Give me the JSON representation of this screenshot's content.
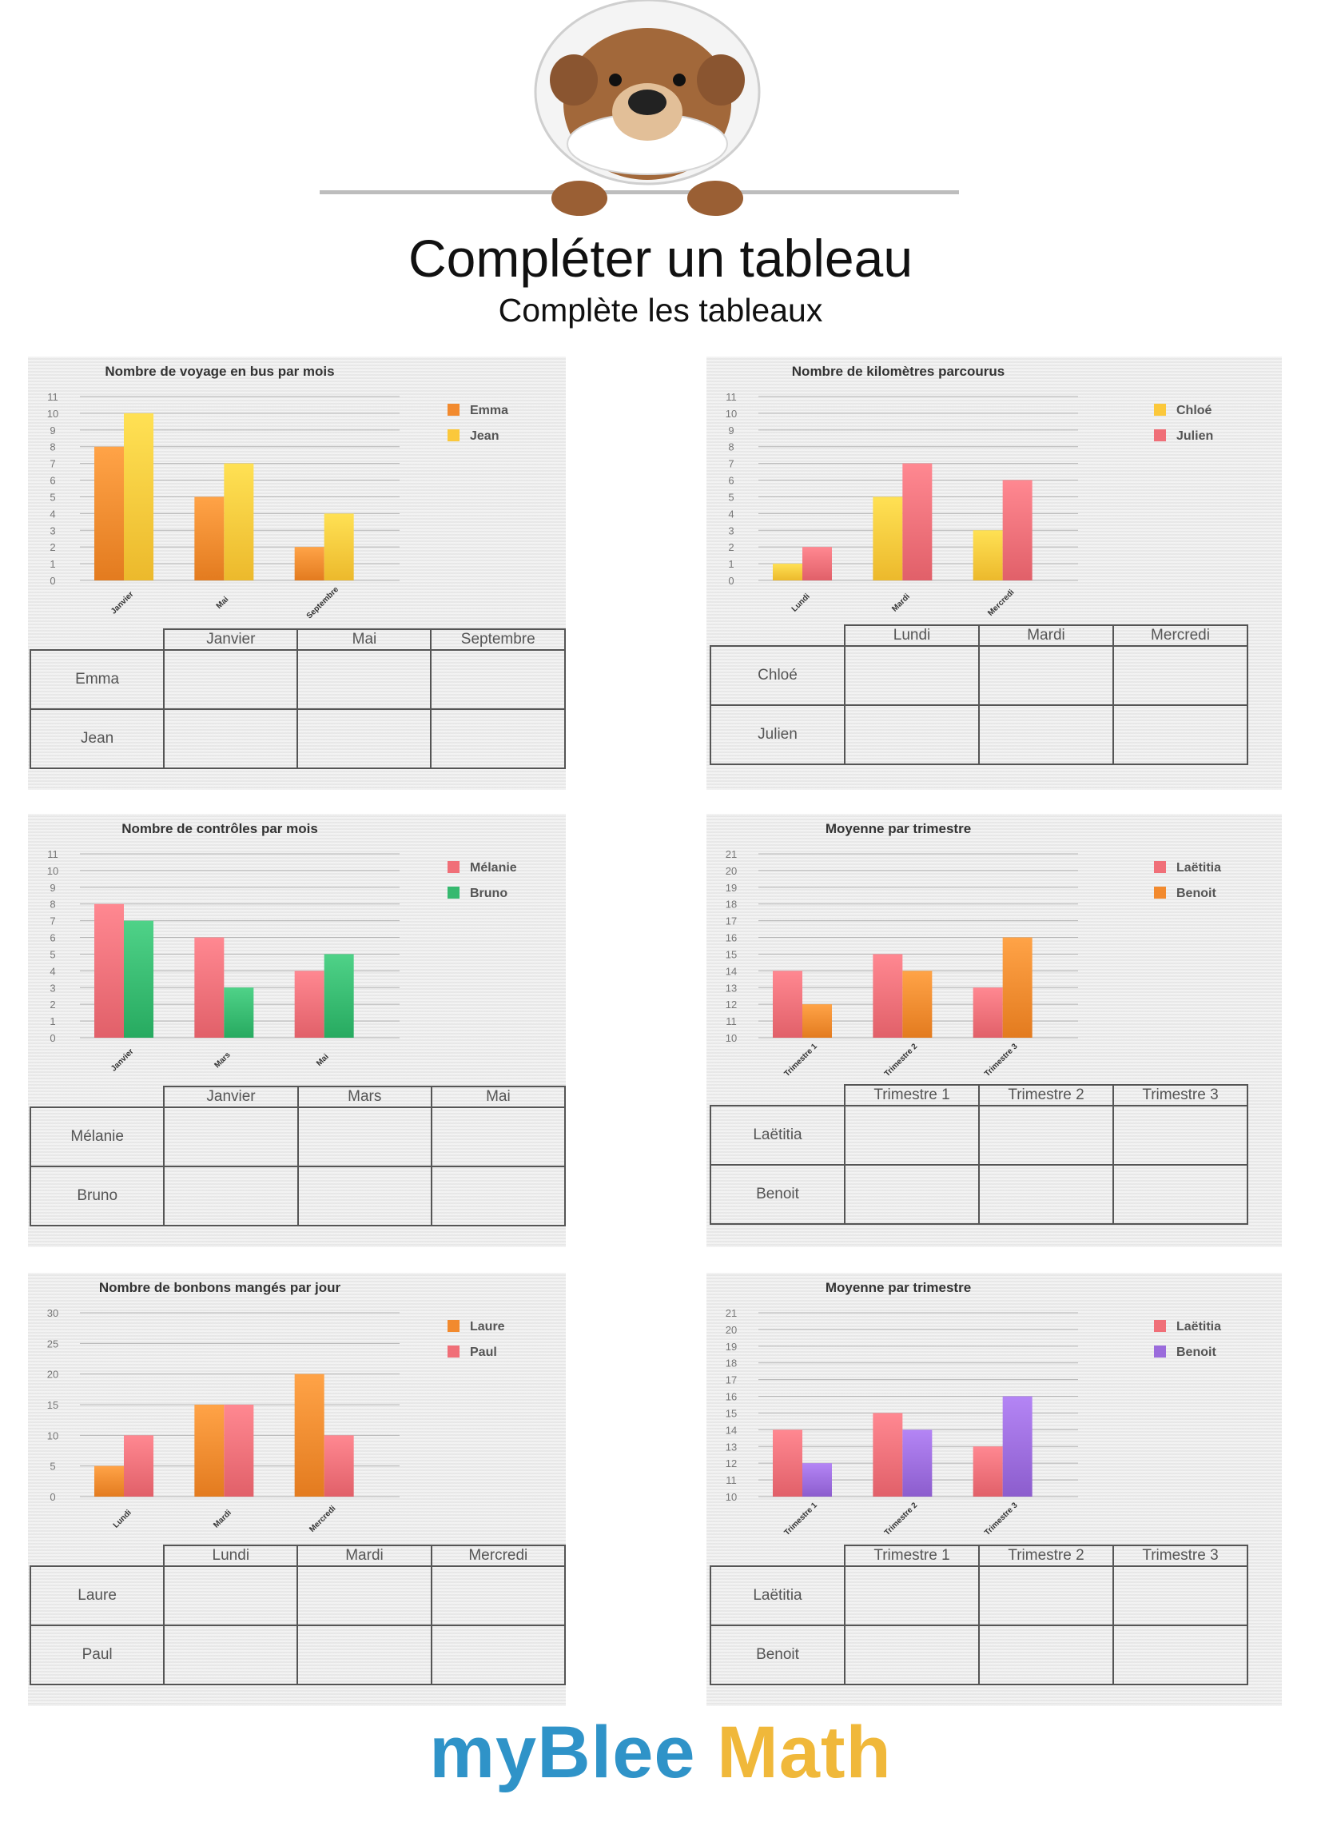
{
  "header": {
    "title": "Compléter un tableau",
    "subtitle": "Complète les tableaux"
  },
  "footer": {
    "logo_part1": "myBlee",
    "logo_part2": "Math"
  },
  "colors": {
    "orange": "#f28a2e",
    "yellow": "#fbc83b",
    "pink": "#f06f78",
    "green": "#36b96f",
    "purple": "#9b6cdc"
  },
  "chart_data": [
    {
      "type": "bar",
      "title": "Nombre de voyage en bus par mois",
      "categories": [
        "Janvier",
        "Mai",
        "Septembre"
      ],
      "series": [
        {
          "name": "Emma",
          "values": [
            8,
            5,
            2
          ],
          "color": "#f28a2e"
        },
        {
          "name": "Jean",
          "values": [
            10,
            7,
            4
          ],
          "color": "#fbc83b"
        }
      ],
      "ylim": [
        0,
        11
      ],
      "yticks": [
        0,
        1,
        2,
        3,
        4,
        5,
        6,
        7,
        8,
        9,
        10,
        11
      ],
      "legend": "top-right"
    },
    {
      "type": "bar",
      "title": "Nombre de kilomètres parcourus",
      "categories": [
        "Lundi",
        "Mardi",
        "Mercredi"
      ],
      "series": [
        {
          "name": "Chloé",
          "values": [
            1,
            5,
            3
          ],
          "color": "#fbc83b"
        },
        {
          "name": "Julien",
          "values": [
            2,
            7,
            6
          ],
          "color": "#f06f78"
        }
      ],
      "ylim": [
        0,
        11
      ],
      "yticks": [
        0,
        1,
        2,
        3,
        4,
        5,
        6,
        7,
        8,
        9,
        10,
        11
      ],
      "legend": "top-right"
    },
    {
      "type": "bar",
      "title": "Nombre de contrôles par mois",
      "categories": [
        "Janvier",
        "Mars",
        "Mai"
      ],
      "series": [
        {
          "name": "Mélanie",
          "values": [
            8,
            6,
            4
          ],
          "color": "#f06f78"
        },
        {
          "name": "Bruno",
          "values": [
            7,
            3,
            5
          ],
          "color": "#36b96f"
        }
      ],
      "ylim": [
        0,
        11
      ],
      "yticks": [
        0,
        1,
        2,
        3,
        4,
        5,
        6,
        7,
        8,
        9,
        10,
        11
      ],
      "legend": "top-right"
    },
    {
      "type": "bar",
      "title": "Moyenne par trimestre",
      "categories": [
        "Trimestre 1",
        "Trimestre 2",
        "Trimestre 3"
      ],
      "series": [
        {
          "name": "Laëtitia",
          "values": [
            14,
            15,
            13
          ],
          "color": "#f06f78"
        },
        {
          "name": "Benoit",
          "values": [
            12,
            14,
            16
          ],
          "color": "#f28a2e"
        }
      ],
      "ylim": [
        10,
        21
      ],
      "yticks": [
        10,
        11,
        12,
        13,
        14,
        15,
        16,
        17,
        18,
        19,
        20,
        21
      ],
      "legend": "top-right"
    },
    {
      "type": "bar",
      "title": "Nombre de bonbons mangés par jour",
      "categories": [
        "Lundi",
        "Mardi",
        "Mercredi"
      ],
      "series": [
        {
          "name": "Laure",
          "values": [
            5,
            15,
            20
          ],
          "color": "#f28a2e"
        },
        {
          "name": "Paul",
          "values": [
            10,
            15,
            10
          ],
          "color": "#f06f78"
        }
      ],
      "ylim": [
        0,
        30
      ],
      "yticks": [
        0,
        5,
        10,
        15,
        20,
        25,
        30
      ],
      "legend": "top-right"
    },
    {
      "type": "bar",
      "title": "Moyenne par trimestre",
      "categories": [
        "Trimestre 1",
        "Trimestre 2",
        "Trimestre 3"
      ],
      "series": [
        {
          "name": "Laëtitia",
          "values": [
            14,
            15,
            13
          ],
          "color": "#f06f78"
        },
        {
          "name": "Benoit",
          "values": [
            12,
            14,
            16
          ],
          "color": "#9b6cdc"
        }
      ],
      "ylim": [
        10,
        21
      ],
      "yticks": [
        10,
        11,
        12,
        13,
        14,
        15,
        16,
        17,
        18,
        19,
        20,
        21
      ],
      "legend": "top-right"
    }
  ],
  "tables": [
    {
      "columns": [
        "Janvier",
        "Mai",
        "Septembre"
      ],
      "rows": [
        "Emma",
        "Jean"
      ]
    },
    {
      "columns": [
        "Lundi",
        "Mardi",
        "Mercredi"
      ],
      "rows": [
        "Chloé",
        "Julien"
      ]
    },
    {
      "columns": [
        "Janvier",
        "Mars",
        "Mai"
      ],
      "rows": [
        "Mélanie",
        "Bruno"
      ]
    },
    {
      "columns": [
        "Trimestre 1",
        "Trimestre 2",
        "Trimestre 3"
      ],
      "rows": [
        "Laëtitia",
        "Benoit"
      ]
    },
    {
      "columns": [
        "Lundi",
        "Mardi",
        "Mercredi"
      ],
      "rows": [
        "Laure",
        "Paul"
      ]
    },
    {
      "columns": [
        "Trimestre 1",
        "Trimestre 2",
        "Trimestre 3"
      ],
      "rows": [
        "Laëtitia",
        "Benoit"
      ]
    }
  ]
}
